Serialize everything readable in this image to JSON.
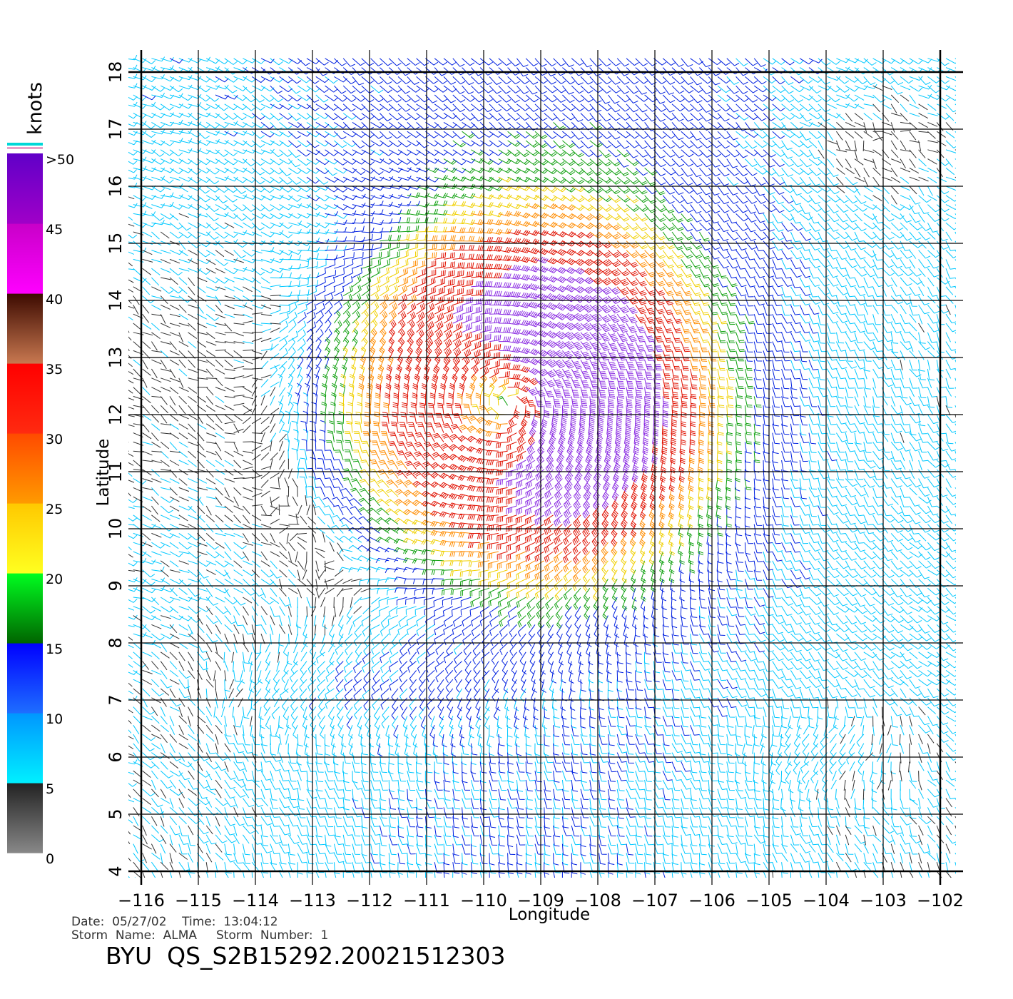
{
  "chart_data": {
    "type": "wind-barb-map",
    "xlabel": "Longitude",
    "ylabel": "Latitude",
    "xlim": [
      -116,
      -101.5
    ],
    "ylim": [
      4,
      18.4
    ],
    "x_ticks": [
      -116,
      -115,
      -114,
      -113,
      -112,
      -111,
      -110,
      -109,
      -108,
      -107,
      -106,
      -105,
      -104,
      -103,
      -102
    ],
    "x_tick_labels": [
      "−116",
      "−115",
      "−114",
      "−113",
      "−112",
      "−111",
      "−110",
      "−109",
      "−108",
      "−107",
      "−106",
      "−105",
      "−104",
      "−103",
      "−102"
    ],
    "y_ticks": [
      4,
      5,
      6,
      7,
      8,
      9,
      10,
      11,
      12,
      13,
      14,
      15,
      16,
      17,
      18
    ],
    "y_tick_labels": [
      "4",
      "5",
      "6",
      "7",
      "8",
      "9",
      "10",
      "11",
      "12",
      "13",
      "14",
      "15",
      "16",
      "17",
      "18"
    ],
    "grid": true,
    "storm_center": {
      "lon": -109.5,
      "lat": 12.2
    },
    "legend": {
      "title": "knots",
      "position": "left",
      "ticks": [
        {
          "value": 0,
          "label": "0"
        },
        {
          "value": 5,
          "label": "5"
        },
        {
          "value": 10,
          "label": "10"
        },
        {
          "value": 15,
          "label": "15"
        },
        {
          "value": 20,
          "label": "20"
        },
        {
          "value": 25,
          "label": "25"
        },
        {
          "value": 30,
          "label": "30"
        },
        {
          "value": 35,
          "label": "35"
        },
        {
          "value": 40,
          "label": "40"
        },
        {
          "value": 45,
          "label": "45"
        },
        {
          "value": 50,
          "label": ">50"
        }
      ],
      "bands": [
        {
          "from": 0,
          "to": 5,
          "colors": [
            "#888888",
            "#222222"
          ]
        },
        {
          "from": 5,
          "to": 10,
          "colors": [
            "#00f0ff",
            "#0096ff"
          ]
        },
        {
          "from": 10,
          "to": 15,
          "colors": [
            "#1e6eff",
            "#0000ff"
          ]
        },
        {
          "from": 15,
          "to": 20,
          "colors": [
            "#006400",
            "#00ff20"
          ]
        },
        {
          "from": 20,
          "to": 25,
          "colors": [
            "#ffff20",
            "#ffc800"
          ]
        },
        {
          "from": 25,
          "to": 30,
          "colors": [
            "#ff9a00",
            "#ff4a00"
          ]
        },
        {
          "from": 30,
          "to": 35,
          "colors": [
            "#ff2a10",
            "#ff0000"
          ]
        },
        {
          "from": 35,
          "to": 40,
          "colors": [
            "#c87850",
            "#3c0a00"
          ]
        },
        {
          "from": 40,
          "to": 45,
          "colors": [
            "#ff00ff",
            "#c800c8"
          ]
        },
        {
          "from": 45,
          "to": 50,
          "colors": [
            "#a000c8",
            "#6000c8"
          ]
        }
      ]
    },
    "wind_colors": {
      "calm": "#333333",
      "light": "#00c8ff",
      "moderate": "#0020e0",
      "fresh": "#10a010",
      "strong": "#f0d000",
      "gale": "#ff8c00",
      "storm": "#e01000",
      "severe": "#8a2be2"
    }
  },
  "footer": {
    "date_line": "Date:  05/27/02    Time:  13:04:12",
    "storm_line": "Storm  Name:  ALMA     Storm  Number:  1",
    "product_id": "BYU  QS_S2B15292.20021512303"
  }
}
